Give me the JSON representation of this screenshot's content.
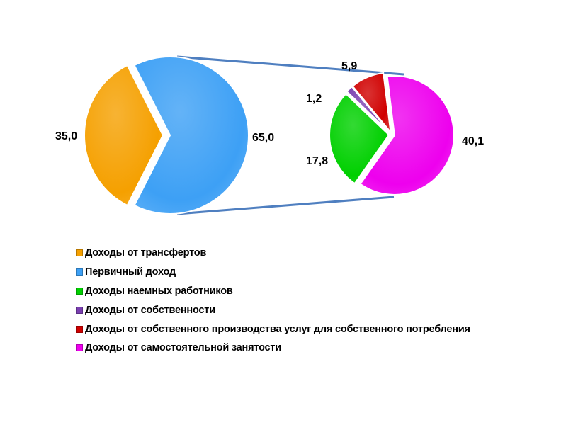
{
  "chart_data": {
    "type": "pie",
    "subtype": "pie-of-pie",
    "title": "",
    "main_pie": [
      {
        "name": "Доходы от трансфертов",
        "value": 35.0,
        "label": "35,0",
        "color": "#f5a000"
      },
      {
        "name": "Первичный доход",
        "value": 65.0,
        "label": "65,0",
        "color": "#3da0f5"
      }
    ],
    "secondary_pie": [
      {
        "name": "Доходы от самостоятельной занятости",
        "value": 40.1,
        "label": "40,1",
        "color": "#ee00ee"
      },
      {
        "name": "Доходы наемных работников",
        "value": 17.8,
        "label": "17,8",
        "color": "#00d000"
      },
      {
        "name": "Доходы от собственности",
        "value": 1.2,
        "label": "1,2",
        "color": "#7a3fb0"
      },
      {
        "name": "Доходы от собственного производства услуг для собственного потребления",
        "value": 5.9,
        "label": "5,9",
        "color": "#d00000"
      }
    ],
    "connector_color": "#4f7fc0",
    "legend": {
      "placement": "bottom-left",
      "entries": [
        {
          "label": "Доходы от трансфертов",
          "color": "#f5a000"
        },
        {
          "label": "Первичный доход",
          "color": "#3da0f5"
        },
        {
          "label": "Доходы наемных работников",
          "color": "#00d000"
        },
        {
          "label": "Доходы от собственности",
          "color": "#7a3fb0"
        },
        {
          "label": "Доходы от собственного производства услуг для собственного потребления",
          "color": "#d00000"
        },
        {
          "label": "Доходы от самостоятельной занятости",
          "color": "#ee00ee"
        }
      ]
    }
  }
}
